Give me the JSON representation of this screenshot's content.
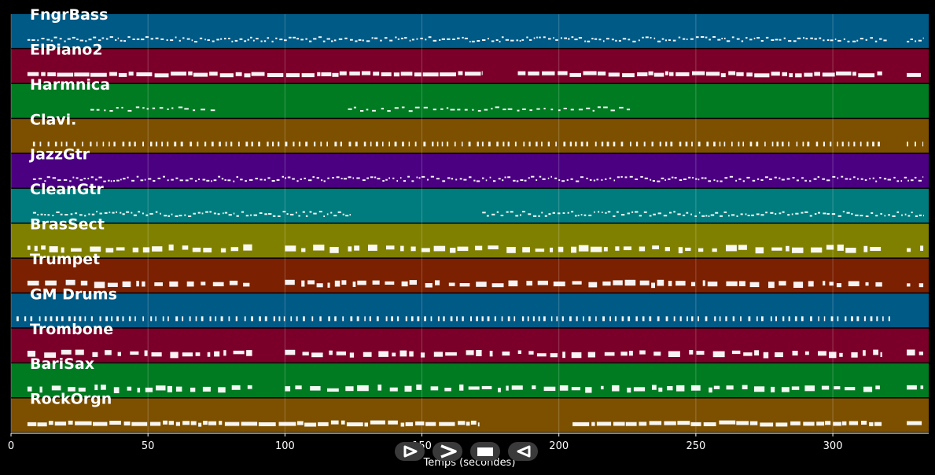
{
  "chart_data": {
    "type": "piano-roll",
    "title": "",
    "xlabel": "Temps (secondes)",
    "ylabel": "",
    "xlim": [
      0,
      335
    ],
    "xticks": [
      0,
      50,
      100,
      150,
      200,
      250,
      300
    ],
    "grid": true,
    "tracks": [
      {
        "name": "FngrBass",
        "color": "#005a86",
        "active": [
          [
            6,
            320
          ],
          [
            327,
            333
          ]
        ],
        "style": "dense"
      },
      {
        "name": "ElPiano2",
        "color": "#7b0029",
        "active": [
          [
            6,
            172
          ],
          [
            185,
            318
          ],
          [
            327,
            333
          ]
        ],
        "style": "blocks"
      },
      {
        "name": "Harmnica",
        "color": "#007b22",
        "active": [
          [
            29,
            75
          ],
          [
            123,
            226
          ]
        ],
        "style": "sparse"
      },
      {
        "name": "Clavi.",
        "color": "#7d5000",
        "active": [
          [
            8,
            318
          ],
          [
            327,
            333
          ]
        ],
        "style": "stabs"
      },
      {
        "name": "JazzGtr",
        "color": "#4b0082",
        "active": [
          [
            8,
            333
          ]
        ],
        "style": "dense"
      },
      {
        "name": "CleanGtr",
        "color": "#007c7e",
        "active": [
          [
            8,
            124
          ],
          [
            172,
            333
          ]
        ],
        "style": "dense"
      },
      {
        "name": "BrasSect",
        "color": "#808000",
        "active": [
          [
            6,
            88
          ],
          [
            100,
            318
          ],
          [
            327,
            333
          ]
        ],
        "style": "chords"
      },
      {
        "name": "Trumpet",
        "color": "#7b2000",
        "active": [
          [
            6,
            88
          ],
          [
            100,
            318
          ],
          [
            327,
            333
          ]
        ],
        "style": "chords"
      },
      {
        "name": "GM Drums",
        "color": "#005a86",
        "active": [
          [
            2,
            322
          ]
        ],
        "style": "stabs"
      },
      {
        "name": "Trombone",
        "color": "#7b0029",
        "active": [
          [
            6,
            88
          ],
          [
            100,
            318
          ],
          [
            327,
            333
          ]
        ],
        "style": "chords"
      },
      {
        "name": "BariSax",
        "color": "#007b22",
        "active": [
          [
            6,
            88
          ],
          [
            100,
            318
          ],
          [
            327,
            333
          ]
        ],
        "style": "chords"
      },
      {
        "name": "RockOrgn",
        "color": "#7d5000",
        "active": [
          [
            6,
            171
          ],
          [
            205,
            318
          ],
          [
            327,
            333
          ]
        ],
        "style": "blocks"
      }
    ]
  },
  "controls": {
    "play_icon": "play-icon",
    "forward_icon": "fast-forward-icon",
    "stop_icon": "stop-icon",
    "rewind_icon": "rewind-icon"
  }
}
